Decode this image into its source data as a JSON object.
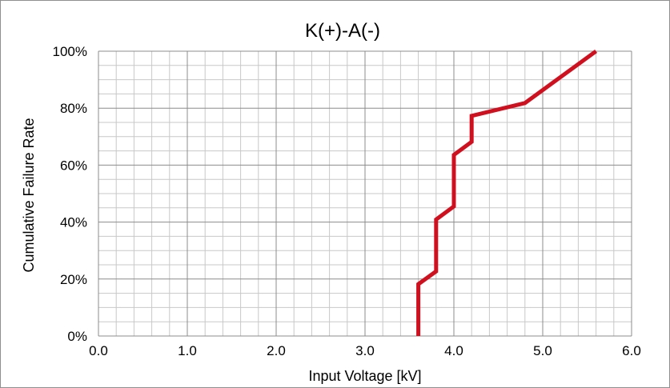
{
  "chart_data": {
    "type": "line",
    "title": "K(+)-A(-)",
    "xlabel": "Input Voltage [kV]",
    "ylabel": "Cumulative Failure Rate",
    "xlim": [
      0.0,
      6.0
    ],
    "ylim": [
      0,
      100
    ],
    "x_ticks": [
      "0.0",
      "1.0",
      "2.0",
      "3.0",
      "4.0",
      "5.0",
      "6.0"
    ],
    "y_ticks": [
      "0%",
      "20%",
      "40%",
      "60%",
      "80%",
      "100%"
    ],
    "grid": true,
    "legend": "none",
    "series": [
      {
        "color": "#d0101f",
        "points": [
          {
            "x": 3.6,
            "y": 0
          },
          {
            "x": 3.6,
            "y": 18.2
          },
          {
            "x": 3.8,
            "y": 22.7
          },
          {
            "x": 3.8,
            "y": 40.9
          },
          {
            "x": 4.0,
            "y": 45.5
          },
          {
            "x": 4.0,
            "y": 63.6
          },
          {
            "x": 4.2,
            "y": 68.2
          },
          {
            "x": 4.2,
            "y": 77.3
          },
          {
            "x": 4.8,
            "y": 81.8
          },
          {
            "x": 5.6,
            "y": 100
          }
        ]
      }
    ]
  }
}
